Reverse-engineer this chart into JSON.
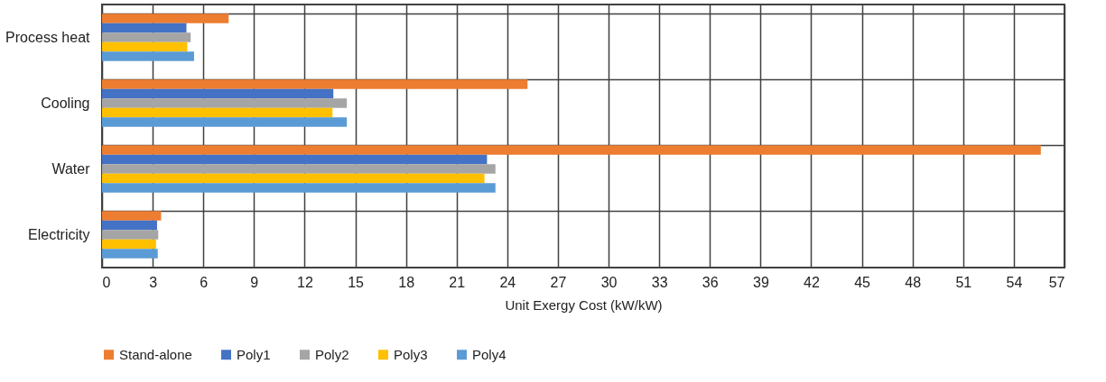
{
  "chart_data": {
    "type": "bar",
    "orientation": "horizontal",
    "xlabel": "Unit Exergy Cost (kW/kW)",
    "categories": [
      "Process heat",
      "Cooling",
      "Water",
      "Electricity"
    ],
    "series": [
      {
        "name": "Stand-alone",
        "color": "#ed7d31",
        "values": [
          7.5,
          25.2,
          55.6,
          3.5
        ]
      },
      {
        "name": "Poly1",
        "color": "#4472c4",
        "values": [
          5.0,
          13.7,
          22.8,
          3.26
        ]
      },
      {
        "name": "Poly2",
        "color": "#a5a5a5",
        "values": [
          5.25,
          14.5,
          23.3,
          3.33
        ]
      },
      {
        "name": "Poly3",
        "color": "#ffc000",
        "values": [
          5.05,
          13.65,
          22.65,
          3.2
        ]
      },
      {
        "name": "Poly4",
        "color": "#5b9bd5",
        "values": [
          5.45,
          14.5,
          23.3,
          3.3
        ]
      }
    ],
    "xlim": [
      0,
      57
    ],
    "xticks": [
      0,
      3,
      6,
      9,
      12,
      15,
      18,
      21,
      24,
      27,
      30,
      33,
      36,
      39,
      42,
      45,
      48,
      51,
      54,
      57
    ],
    "grid": true,
    "legend": "bottom"
  }
}
